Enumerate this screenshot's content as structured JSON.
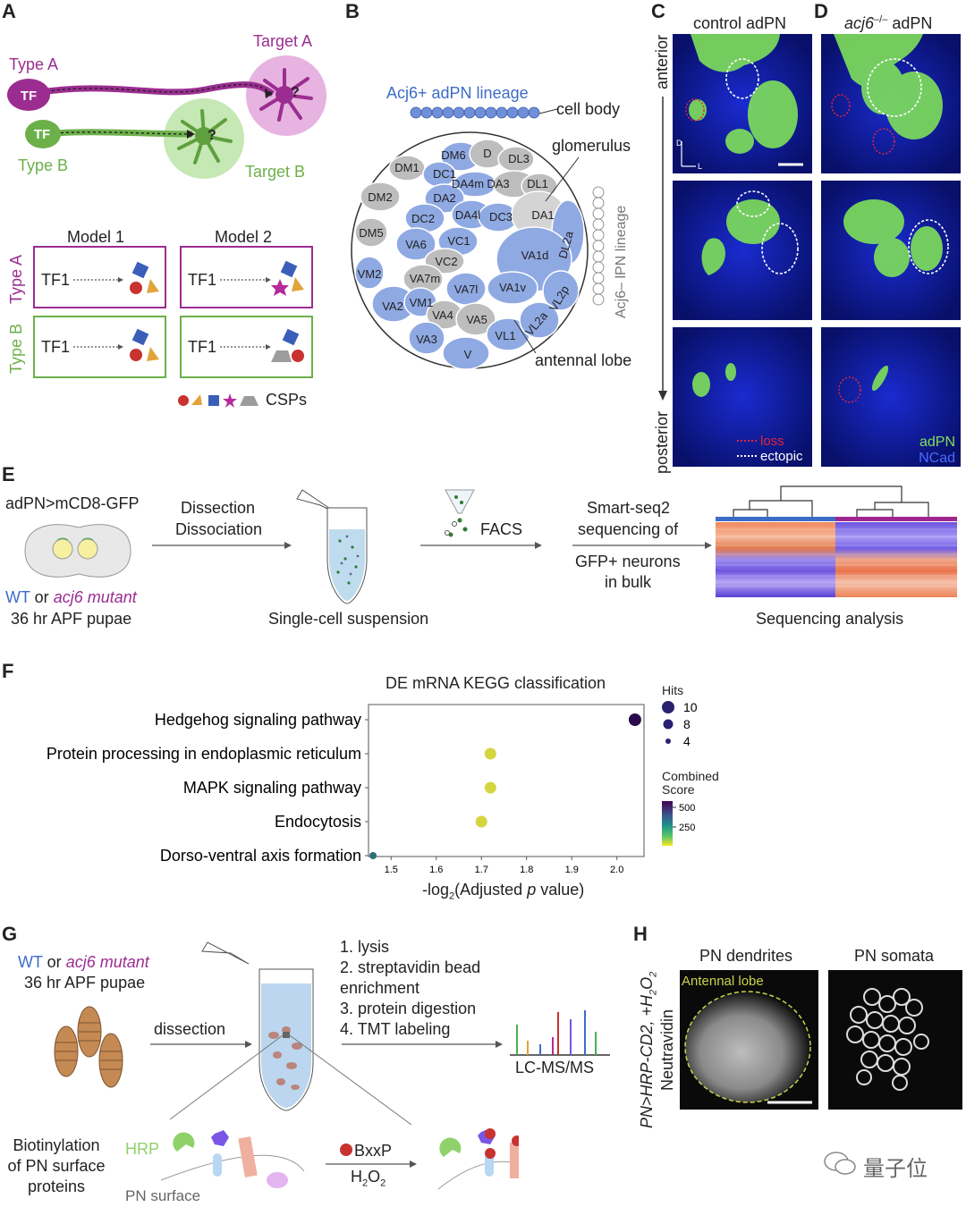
{
  "panel_labels": {
    "A": "A",
    "B": "B",
    "C": "C",
    "D": "D",
    "E": "E",
    "F": "F",
    "G": "G",
    "H": "H"
  },
  "panelA": {
    "type_a": "Type A",
    "type_b": "Type B",
    "target_a": "Target A",
    "target_b": "Target B",
    "tf": "TF",
    "question": "?",
    "model1": "Model 1",
    "model2": "Model 2",
    "row_type_a": "Type A",
    "row_type_b": "Type B",
    "tf1": "TF1",
    "csps": "CSPs",
    "colors": {
      "purple": "#9b2d91",
      "green": "#6cb04a",
      "target_a": "#e3a3d8",
      "target_b": "#b7e2a3"
    }
  },
  "panelB": {
    "lineage": "Acj6+ adPN lineage",
    "cell_body": "cell body",
    "glomerulus": "glomerulus",
    "antennal_lobe": "antennal lobe",
    "lpn_lineage": "Acj6– lPN lineage",
    "glomeruli": [
      "DM6",
      "D",
      "DL3",
      "DM1",
      "DC1",
      "DA4m",
      "DA3",
      "DL1",
      "DM2",
      "DA2",
      "DC2",
      "DA4l",
      "DC3",
      "DA1",
      "DM5",
      "VA6",
      "VC1",
      "VC2",
      "VA1d",
      "DL2a",
      "VM2",
      "VA7m",
      "VA7l",
      "VA1v",
      "VL2p",
      "VA2",
      "VM1",
      "VA4",
      "VA5",
      "VL1",
      "VL2a",
      "VA3",
      "V"
    ]
  },
  "panelCD": {
    "control": "control adPN",
    "mutant": "acj6",
    "mutant_sup": "–/–",
    "mutant_suffix": " adPN",
    "anterior": "anterior",
    "posterior": "posterior",
    "loss": "loss",
    "ectopic": "ectopic",
    "adpn": "adPN",
    "ncad": "NCad",
    "d": "D",
    "l": "L"
  },
  "panelE": {
    "genotype": "adPN>mCD8-GFP",
    "dissection": "Dissection",
    "dissociation": "Dissociation",
    "facs": "FACS",
    "smart1": "Smart-seq2",
    "smart2": "sequencing of",
    "gfp1": "GFP+ neurons",
    "gfp2": "in bulk",
    "wt": "WT",
    "or": " or ",
    "acj6": "acj6 mutant",
    "pupae": "36 hr APF pupae",
    "suspension": "Single-cell suspension",
    "seq_analysis": "Sequencing analysis"
  },
  "panelF": {
    "chart_data": {
      "type": "scatter",
      "title": "DE mRNA KEGG classification",
      "xlabel": "-log2(Adjusted p value)",
      "xlim": [
        1.45,
        2.06
      ],
      "xticks": [
        1.5,
        1.6,
        1.7,
        1.8,
        1.9,
        2.0
      ],
      "categories": [
        "Hedgehog signaling pathway",
        "Protein processing in endoplasmic reticulum",
        "MAPK signaling pathway",
        "Endocytosis",
        "Dorso-ventral axis formation"
      ],
      "x": [
        2.04,
        1.72,
        1.72,
        1.7,
        1.46
      ],
      "hits": [
        10,
        9,
        9,
        9,
        4
      ],
      "combined_score": [
        560,
        80,
        80,
        80,
        320
      ],
      "legend_hits_title": "Hits",
      "legend_hits": [
        10,
        8,
        4
      ],
      "legend_score_title": [
        "Combined",
        "Score"
      ],
      "legend_score_ticks": [
        500,
        250
      ],
      "colors": {
        "low": "#f2e233",
        "mid": "#2f8c87",
        "high": "#2a0a4d",
        "legend_grad": [
          "#fde725",
          "#5ec962",
          "#21918c",
          "#3b528b",
          "#440154"
        ]
      }
    }
  },
  "panelG": {
    "wt": "WT",
    "or": " or ",
    "acj6": "acj6 mutant",
    "pupae": "36 hr APF pupae",
    "dissection": "dissection",
    "steps": [
      "1. lysis",
      "2. streptavidin bead",
      "enrichment",
      "3. protein digestion",
      "4. TMT labeling"
    ],
    "lcms": "LC-MS/MS",
    "biotin": [
      "Biotinylation",
      "of PN surface",
      "proteins"
    ],
    "hrp": "HRP",
    "bxxp": "BxxP",
    "h2o2": "H",
    "pn_surface": "PN surface"
  },
  "panelH": {
    "ylabel1": "PN>HRP-CD2, +H",
    "ylabel1b": "2",
    "ylabel1c": "O",
    "ylabel1d": "2",
    "ylabel2": "Neutravidin",
    "dendrites": "PN dendrites",
    "somata": "PN somata",
    "antennal_lobe": "Antennal lobe"
  },
  "watermark": "量子位"
}
